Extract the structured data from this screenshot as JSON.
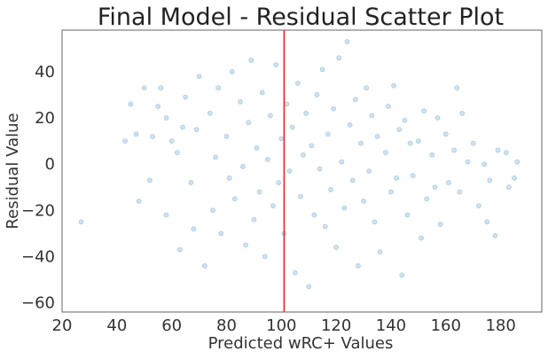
{
  "chart_data": {
    "type": "scatter",
    "title": "Final Model - Residual Scatter Plot",
    "xlabel": "Predicted wRC+ Values",
    "ylabel": "Residual Value",
    "xlim": [
      20,
      195
    ],
    "ylim": [
      -64,
      58
    ],
    "xticks": [
      20,
      40,
      60,
      80,
      100,
      120,
      140,
      160,
      180
    ],
    "yticks": [
      -60,
      -40,
      -20,
      0,
      20,
      40
    ],
    "xtick_labels": [
      "20",
      "40",
      "60",
      "80",
      "100",
      "120",
      "140",
      "160",
      "180"
    ],
    "ytick_labels": [
      "−60",
      "−40",
      "−20",
      "0",
      "20",
      "40"
    ],
    "grid": false,
    "point_color": "#1f77b4",
    "point_opacity": 0.22,
    "reference_line": {
      "orientation": "vertical",
      "x": 101,
      "color": "#e8262a"
    },
    "points": [
      [
        27,
        -25
      ],
      [
        43,
        10
      ],
      [
        45,
        26
      ],
      [
        47,
        13
      ],
      [
        48,
        -16
      ],
      [
        50,
        33
      ],
      [
        52,
        -7
      ],
      [
        53,
        12
      ],
      [
        55,
        25
      ],
      [
        56,
        33
      ],
      [
        58,
        20
      ],
      [
        58,
        -22
      ],
      [
        60,
        10
      ],
      [
        62,
        5
      ],
      [
        63,
        -37
      ],
      [
        64,
        16
      ],
      [
        65,
        29
      ],
      [
        67,
        -8
      ],
      [
        68,
        -28
      ],
      [
        69,
        15
      ],
      [
        70,
        38
      ],
      [
        72,
        -44
      ],
      [
        74,
        22
      ],
      [
        75,
        -20
      ],
      [
        76,
        3
      ],
      [
        77,
        33
      ],
      [
        78,
        -30
      ],
      [
        80,
        12
      ],
      [
        81,
        -6
      ],
      [
        82,
        40
      ],
      [
        83,
        -15
      ],
      [
        85,
        27
      ],
      [
        86,
        -1
      ],
      [
        87,
        -35
      ],
      [
        88,
        18
      ],
      [
        89,
        45
      ],
      [
        90,
        -24
      ],
      [
        91,
        7
      ],
      [
        92,
        -12
      ],
      [
        93,
        31
      ],
      [
        94,
        -40
      ],
      [
        95,
        2
      ],
      [
        96,
        21
      ],
      [
        97,
        -18
      ],
      [
        98,
        43
      ],
      [
        99,
        -8
      ],
      [
        100,
        11
      ],
      [
        101,
        -30
      ],
      [
        102,
        26
      ],
      [
        103,
        -3
      ],
      [
        104,
        16
      ],
      [
        105,
        -47
      ],
      [
        106,
        35
      ],
      [
        107,
        -14
      ],
      [
        108,
        4
      ],
      [
        109,
        22
      ],
      [
        110,
        -53
      ],
      [
        111,
        8
      ],
      [
        112,
        -22
      ],
      [
        113,
        30
      ],
      [
        114,
        -2
      ],
      [
        115,
        41
      ],
      [
        116,
        -27
      ],
      [
        117,
        13
      ],
      [
        118,
        -11
      ],
      [
        119,
        24
      ],
      [
        120,
        -36
      ],
      [
        121,
        46
      ],
      [
        122,
        1
      ],
      [
        123,
        -19
      ],
      [
        124,
        53
      ],
      [
        125,
        17
      ],
      [
        126,
        -7
      ],
      [
        127,
        28
      ],
      [
        128,
        -44
      ],
      [
        129,
        9
      ],
      [
        130,
        -16
      ],
      [
        131,
        33
      ],
      [
        132,
        -3
      ],
      [
        133,
        21
      ],
      [
        134,
        -25
      ],
      [
        135,
        12
      ],
      [
        136,
        -38
      ],
      [
        138,
        5
      ],
      [
        139,
        25
      ],
      [
        140,
        -12
      ],
      [
        141,
        34
      ],
      [
        142,
        -6
      ],
      [
        143,
        15
      ],
      [
        144,
        -48
      ],
      [
        145,
        19
      ],
      [
        146,
        -22
      ],
      [
        147,
        9
      ],
      [
        148,
        -5
      ],
      [
        150,
        10
      ],
      [
        151,
        -32
      ],
      [
        152,
        23
      ],
      [
        153,
        -15
      ],
      [
        155,
        4
      ],
      [
        156,
        -10
      ],
      [
        157,
        20
      ],
      [
        158,
        -26
      ],
      [
        160,
        13
      ],
      [
        161,
        -8
      ],
      [
        163,
        6
      ],
      [
        164,
        33
      ],
      [
        165,
        -12
      ],
      [
        166,
        22
      ],
      [
        168,
        1
      ],
      [
        170,
        9
      ],
      [
        172,
        -18
      ],
      [
        174,
        0
      ],
      [
        175,
        -25
      ],
      [
        176,
        -7
      ],
      [
        178,
        -31
      ],
      [
        179,
        6
      ],
      [
        182,
        5
      ],
      [
        183,
        -10
      ],
      [
        185,
        -6
      ],
      [
        186,
        1
      ]
    ]
  }
}
